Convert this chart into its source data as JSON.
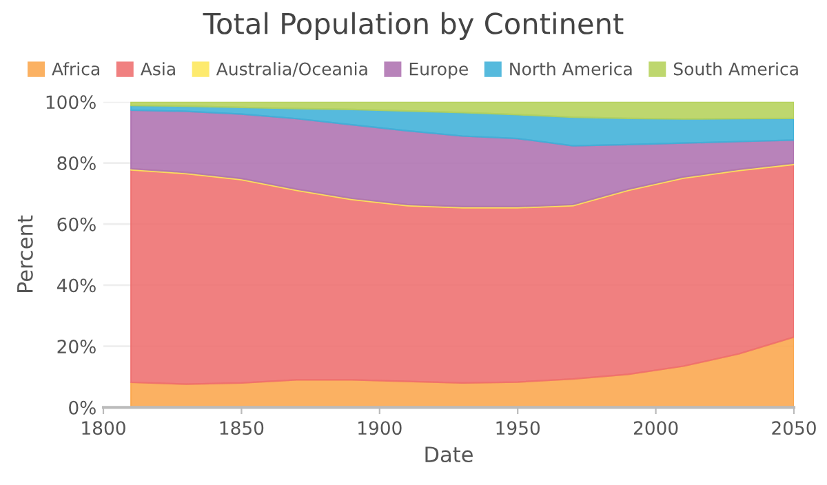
{
  "chart_data": {
    "type": "area",
    "stacked": true,
    "title": "Total Population by Continent",
    "xlabel": "Date",
    "ylabel": "Percent",
    "x": [
      1810,
      1830,
      1850,
      1870,
      1890,
      1910,
      1930,
      1950,
      1970,
      1990,
      2010,
      2030,
      2050
    ],
    "series": [
      {
        "name": "Africa",
        "color": "#fba64c",
        "values": [
          8.2,
          7.6,
          8.0,
          9.0,
          9.0,
          8.5,
          8.0,
          8.3,
          9.3,
          10.8,
          13.5,
          17.5,
          23.0
        ]
      },
      {
        "name": "Asia",
        "color": "#ee6e6e",
        "values": [
          69.5,
          68.9,
          66.5,
          62.0,
          59.0,
          57.5,
          57.3,
          57.0,
          56.7,
          60.2,
          61.5,
          60.0,
          56.5
        ]
      },
      {
        "name": "Australia/Oceania",
        "color": "#fde75a",
        "values": [
          0.4,
          0.4,
          0.4,
          0.4,
          0.4,
          0.4,
          0.4,
          0.4,
          0.4,
          0.4,
          0.4,
          0.4,
          0.4
        ]
      },
      {
        "name": "Europe",
        "color": "#ae72b0",
        "values": [
          19.2,
          20.0,
          21.1,
          23.1,
          24.1,
          24.1,
          23.1,
          22.3,
          19.2,
          14.6,
          11.1,
          9.1,
          7.6
        ]
      },
      {
        "name": "North America",
        "color": "#3fb0d8",
        "values": [
          1.5,
          1.7,
          2.2,
          3.3,
          5.0,
          6.5,
          7.7,
          7.8,
          9.4,
          8.6,
          7.9,
          7.5,
          7.1
        ]
      },
      {
        "name": "South America",
        "color": "#b5d25a",
        "values": [
          1.2,
          1.4,
          1.8,
          2.2,
          2.5,
          3.0,
          3.5,
          4.2,
          5.0,
          5.4,
          5.6,
          5.5,
          5.4
        ]
      }
    ],
    "xlim": [
      1800,
      2050
    ],
    "xticks": [
      1800,
      1850,
      1900,
      1950,
      2000,
      2050
    ],
    "ylim": [
      0,
      100
    ],
    "yticks": [
      {
        "value": 0,
        "label": "0%"
      },
      {
        "value": 20,
        "label": "20%"
      },
      {
        "value": 40,
        "label": "40%"
      },
      {
        "value": 60,
        "label": "60%"
      },
      {
        "value": 80,
        "label": "80%"
      },
      {
        "value": 100,
        "label": "100%"
      }
    ],
    "grid": "y",
    "legend": "top"
  }
}
